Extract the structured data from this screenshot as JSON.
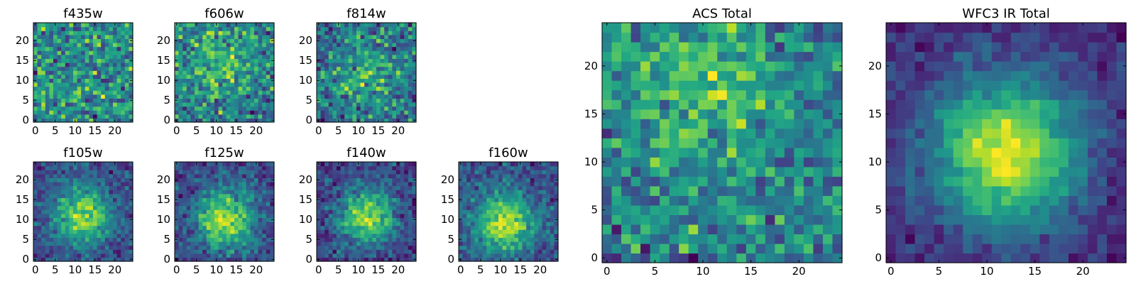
{
  "figure": {
    "colormap": "viridis",
    "background": "#ffffff"
  },
  "chart_data": [
    {
      "type": "heatmap",
      "title": "f435w",
      "grid_size": 25,
      "xlim": [
        -0.5,
        24.5
      ],
      "ylim": [
        -0.5,
        24.5
      ],
      "xticks": [
        0,
        5,
        10,
        15,
        20
      ],
      "yticks": [
        0,
        5,
        10,
        15,
        20
      ],
      "profile": "noise",
      "peak": [
        12,
        12
      ],
      "seed": 11
    },
    {
      "type": "heatmap",
      "title": "f606w",
      "grid_size": 25,
      "xlim": [
        -0.5,
        24.5
      ],
      "ylim": [
        -0.5,
        24.5
      ],
      "xticks": [
        0,
        5,
        10,
        15,
        20
      ],
      "yticks": [
        0,
        5,
        10,
        15,
        20
      ],
      "profile": "weak-source",
      "peak": [
        11,
        15
      ],
      "seed": 23
    },
    {
      "type": "heatmap",
      "title": "f814w",
      "grid_size": 25,
      "xlim": [
        -0.5,
        24.5
      ],
      "ylim": [
        -0.5,
        24.5
      ],
      "xticks": [
        0,
        5,
        10,
        15,
        20
      ],
      "yticks": [
        0,
        5,
        10,
        15,
        20
      ],
      "profile": "weak-source",
      "peak": [
        12,
        12
      ],
      "seed": 37
    },
    {
      "type": "heatmap",
      "title": "f105w",
      "grid_size": 25,
      "xlim": [
        -0.5,
        24.5
      ],
      "ylim": [
        -0.5,
        24.5
      ],
      "xticks": [
        0,
        5,
        10,
        15,
        20
      ],
      "yticks": [
        0,
        5,
        10,
        15,
        20
      ],
      "profile": "source",
      "peak": [
        12,
        11
      ],
      "seed": 41
    },
    {
      "type": "heatmap",
      "title": "f125w",
      "grid_size": 25,
      "xlim": [
        -0.5,
        24.5
      ],
      "ylim": [
        -0.5,
        24.5
      ],
      "xticks": [
        0,
        5,
        10,
        15,
        20
      ],
      "yticks": [
        0,
        5,
        10,
        15,
        20
      ],
      "profile": "source",
      "peak": [
        12,
        10
      ],
      "seed": 53
    },
    {
      "type": "heatmap",
      "title": "f140w",
      "grid_size": 25,
      "xlim": [
        -0.5,
        24.5
      ],
      "ylim": [
        -0.5,
        24.5
      ],
      "xticks": [
        0,
        5,
        10,
        15,
        20
      ],
      "yticks": [
        0,
        5,
        10,
        15,
        20
      ],
      "profile": "source",
      "peak": [
        12,
        11
      ],
      "seed": 67
    },
    {
      "type": "heatmap",
      "title": "f160w",
      "grid_size": 25,
      "xlim": [
        -0.5,
        24.5
      ],
      "ylim": [
        -0.5,
        24.5
      ],
      "xticks": [
        0,
        5,
        10,
        15,
        20
      ],
      "yticks": [
        0,
        5,
        10,
        15,
        20
      ],
      "profile": "source",
      "peak": [
        11,
        9
      ],
      "seed": 79
    },
    {
      "type": "heatmap",
      "title": "ACS Total",
      "grid_size": 25,
      "xlim": [
        -0.5,
        24.5
      ],
      "ylim": [
        -0.5,
        24.5
      ],
      "xticks": [
        0,
        5,
        10,
        15,
        20
      ],
      "yticks": [
        0,
        5,
        10,
        15,
        20
      ],
      "profile": "weak-source",
      "peak": [
        10,
        18
      ],
      "seed": 97
    },
    {
      "type": "heatmap",
      "title": "WFC3 IR Total",
      "grid_size": 25,
      "xlim": [
        -0.5,
        24.5
      ],
      "ylim": [
        -0.5,
        24.5
      ],
      "xticks": [
        0,
        5,
        10,
        15,
        20
      ],
      "yticks": [
        0,
        5,
        10,
        15,
        20
      ],
      "profile": "strong-source",
      "peak": [
        12,
        11
      ],
      "seed": 131
    }
  ]
}
